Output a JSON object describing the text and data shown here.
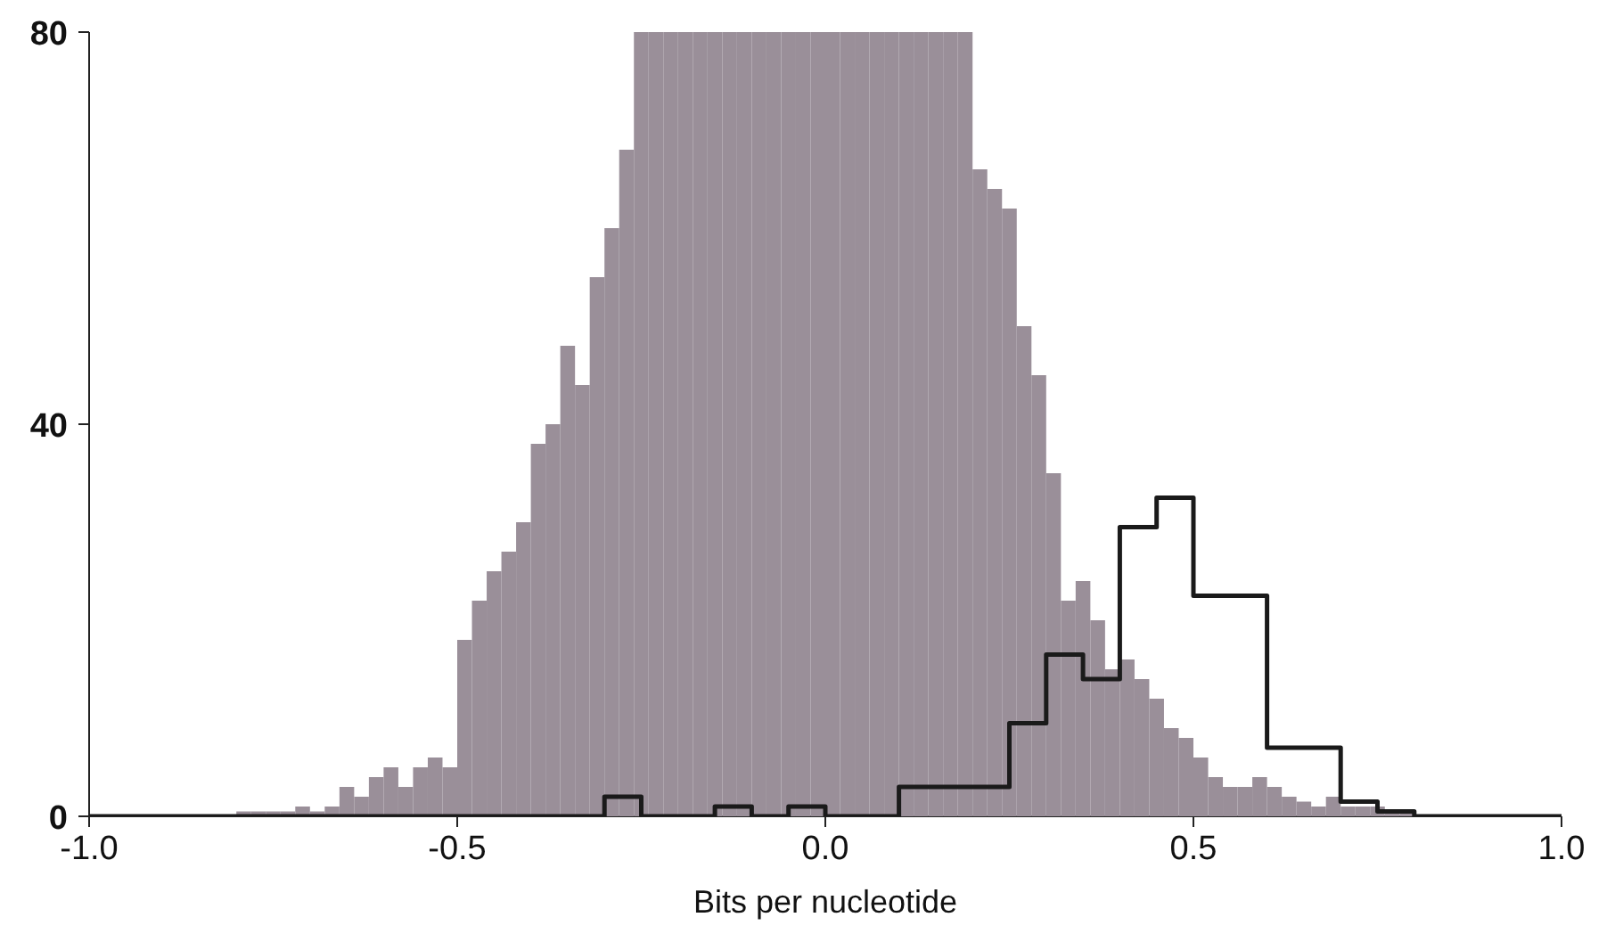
{
  "chart_data": {
    "type": "histogram",
    "xlabel": "Bits per nucleotide",
    "xlim": [
      -1.0,
      1.0
    ],
    "xticks": [
      {
        "value": -1,
        "label": "-1.0"
      },
      -0.5,
      {
        "value": 0,
        "label": "0.0"
      },
      0.5,
      {
        "value": 1,
        "label": "1.0"
      }
    ],
    "ylim": [
      0,
      80
    ],
    "yticks": [
      0,
      40,
      80
    ],
    "grid": false,
    "legend": false,
    "bins": [
      -1.0,
      -0.98,
      -0.96,
      -0.94,
      -0.92,
      -0.9,
      -0.88,
      -0.86,
      -0.84,
      -0.82,
      -0.8,
      -0.78,
      -0.76,
      -0.74,
      -0.72,
      -0.7,
      -0.68,
      -0.66,
      -0.64,
      -0.62,
      -0.6,
      -0.58,
      -0.56,
      -0.54,
      -0.52,
      -0.5,
      -0.48,
      -0.46,
      -0.44,
      -0.42,
      -0.4,
      -0.38,
      -0.36,
      -0.34,
      -0.32,
      -0.3,
      -0.28,
      -0.26,
      -0.24,
      -0.22,
      -0.2,
      -0.18,
      -0.16,
      -0.14,
      -0.12,
      -0.1,
      -0.08,
      -0.06,
      -0.04,
      -0.02,
      0.0,
      0.02,
      0.04,
      0.06,
      0.08,
      0.1,
      0.12,
      0.14,
      0.16,
      0.18,
      0.2,
      0.22,
      0.24,
      0.26,
      0.28,
      0.3,
      0.32,
      0.34,
      0.36,
      0.38,
      0.4,
      0.42,
      0.44,
      0.46,
      0.48,
      0.5,
      0.52,
      0.54,
      0.56,
      0.58,
      0.6,
      0.62,
      0.64,
      0.66,
      0.68,
      0.7,
      0.72,
      0.74,
      0.76,
      0.78,
      0.8,
      0.82,
      0.84,
      0.86,
      0.88,
      0.9,
      0.92,
      0.94,
      0.96,
      0.98,
      1.0
    ],
    "series": [
      {
        "color": "#9a8f99",
        "values": [
          0,
          0,
          0,
          0,
          0,
          0,
          0,
          0,
          0,
          0,
          0.5,
          0.5,
          0.5,
          0.5,
          1,
          0.5,
          1,
          3,
          2,
          4,
          5,
          3,
          5,
          6,
          5,
          18,
          22,
          25,
          27,
          30,
          38,
          40,
          48,
          44,
          55,
          60,
          68,
          80,
          80,
          80,
          80,
          80,
          80,
          80,
          80,
          80,
          80,
          80,
          80,
          80,
          80,
          80,
          80,
          80,
          80,
          80,
          80,
          80,
          80,
          80,
          66,
          64,
          62,
          50,
          45,
          35,
          22,
          24,
          20,
          15,
          16,
          14,
          12,
          9,
          8,
          6,
          4,
          3,
          3,
          4,
          3,
          2,
          1.5,
          1,
          2,
          1,
          1,
          1,
          0.5,
          0.5,
          0,
          0,
          0,
          0,
          0,
          0,
          0,
          0,
          0,
          0
        ]
      },
      {
        "type": "step",
        "color": "#1a1a1a",
        "x": [
          -1.0,
          -0.3,
          -0.25,
          -0.15,
          -0.1,
          -0.05,
          0.0,
          0.1,
          0.25,
          0.3,
          0.35,
          0.4,
          0.45,
          0.5,
          0.6,
          0.7,
          0.75,
          0.8,
          1.0
        ],
        "values": [
          0,
          2,
          0,
          1,
          0,
          1,
          0,
          3,
          9.5,
          16.5,
          14,
          29.5,
          32.5,
          22.5,
          7,
          1.5,
          0.5,
          0,
          0
        ]
      }
    ]
  }
}
